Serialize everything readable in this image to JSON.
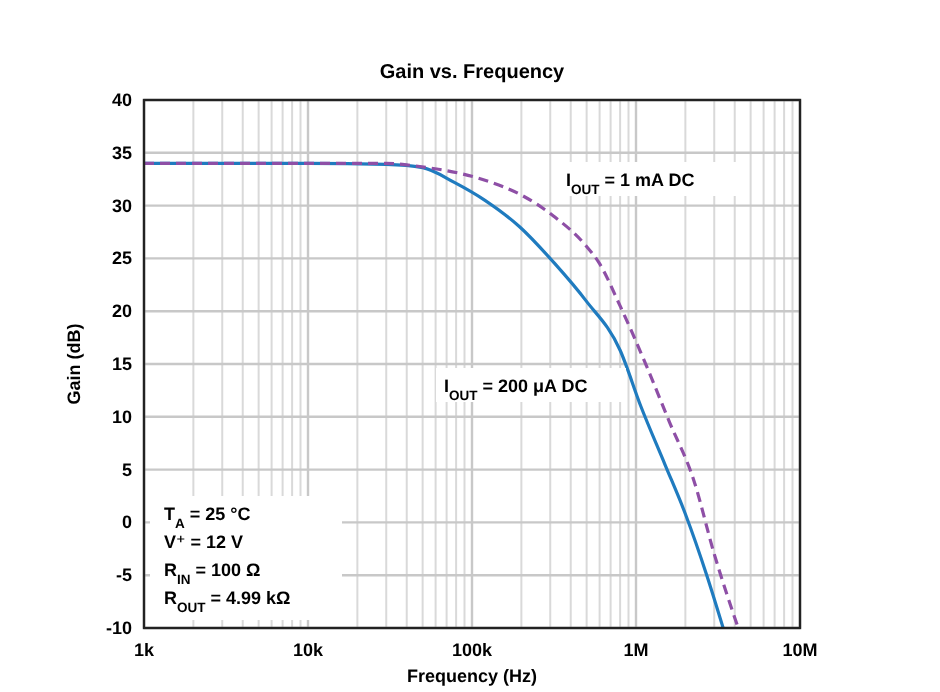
{
  "chart_data": {
    "type": "line",
    "title": "Gain vs. Frequency",
    "xlabel": "Frequency (Hz)",
    "ylabel": "Gain (dB)",
    "log": "x",
    "xlim": [
      1000,
      10000000
    ],
    "xticks": [
      {
        "value": 1000,
        "label": "1k"
      },
      {
        "value": 10000,
        "label": "10k"
      },
      {
        "value": 100000,
        "label": "100k"
      },
      {
        "value": 1000000,
        "label": "1M"
      },
      {
        "value": 10000000,
        "label": "10M"
      }
    ],
    "ylim": [
      -10,
      40
    ],
    "yticks": [
      -10,
      -5,
      0,
      5,
      10,
      15,
      20,
      25,
      30,
      35,
      40
    ],
    "grid": true,
    "series": [
      {
        "name": "I$_{OUT}$ = 200 μA DC",
        "color": "#1f7bbf",
        "line_style": "solid",
        "x": [
          1000,
          10000,
          30000,
          50000,
          78000,
          120000,
          195000,
          320000,
          495000,
          800000,
          1070000,
          1500000,
          2000000,
          2700000,
          3400000
        ],
        "values": [
          34,
          34,
          33.9,
          33.6,
          32.2,
          30.5,
          28,
          24.5,
          21,
          16.3,
          11,
          5.5,
          0.8,
          -5,
          -10
        ]
      },
      {
        "name": "I$_{OUT}$ = 1 mA DC",
        "color": "#8e4fa6",
        "line_style": "dashed",
        "x": [
          1000,
          10000,
          30000,
          48000,
          120000,
          200000,
          315000,
          495000,
          600000,
          800000,
          1160000,
          1600000,
          2250000,
          3000000,
          4200000
        ],
        "values": [
          34,
          34,
          34,
          33.7,
          32.4,
          31,
          29,
          26.2,
          24.5,
          20.5,
          14.8,
          9.5,
          4,
          -3,
          -10
        ]
      }
    ],
    "annotations": [
      "T$_{A}$ = 25 °C",
      "V⁺ = 12 V",
      "R$_{IN}$ = 100 Ω",
      "R$_{OUT}$ = 4.99 kΩ"
    ]
  }
}
